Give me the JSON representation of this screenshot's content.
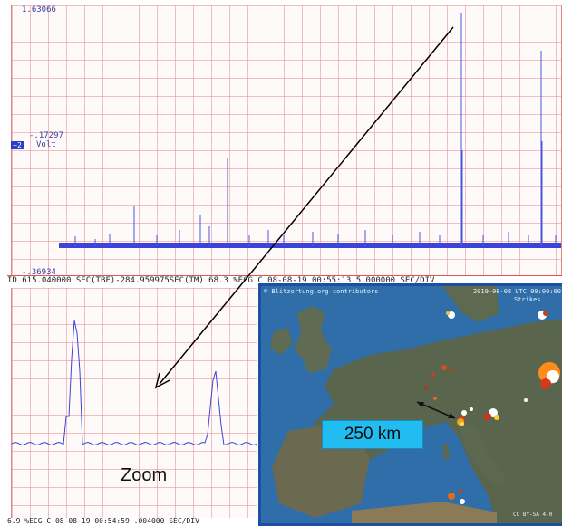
{
  "scope_main": {
    "y_max_label": "1.63066",
    "y_mid_label": "-.17297",
    "y_min_label": "-.36934",
    "channel_badge": "+2",
    "unit_label": "Volt",
    "status_text": "ID 615.040000 SEC(TBF)-284.959975SEC(TM)  68.3 %ECG C  08-08-19 00:55:13 5.000000 SEC/DIV",
    "trace_color": "#3b44d6"
  },
  "scope_zoom": {
    "label": "Zoom",
    "status_text": "6.9 %ECG C  08-08-19 00:54:59 .004000 SEC/DIV"
  },
  "map": {
    "credit": "© Blitzortung.org contributors",
    "timestamp": "2019-08-08 UTC 00:00:00",
    "strikes_label": "Strikes",
    "distance_label": "250 km",
    "footer": "CC BY-SA 4.0"
  },
  "colors": {
    "grid": "#e68c8c",
    "map_border": "#1d4fa3",
    "distance_box": "#22bdf0",
    "arrow": "#000000"
  }
}
